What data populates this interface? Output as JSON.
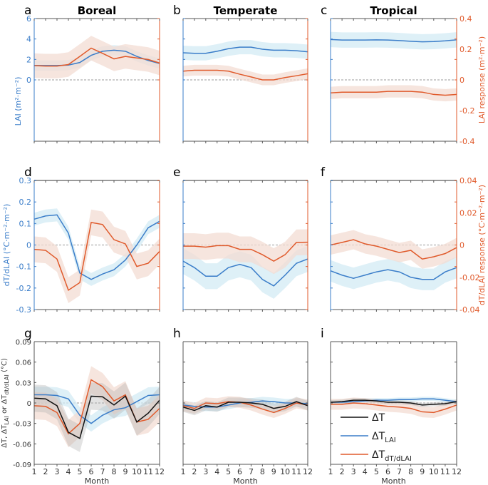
{
  "colors": {
    "lai": "#3a7dc9",
    "response": "#e05a2b",
    "dT": "#111111",
    "band_lai": "#d3ebf4",
    "band_resp": "#f3dcd3",
    "band_dT": "#b0b0b0"
  },
  "columns": [
    "Boreal",
    "Temperate",
    "Tropical"
  ],
  "panel_letters": [
    "a",
    "b",
    "c",
    "d",
    "e",
    "f",
    "g",
    "h",
    "i"
  ],
  "xlabel": "Month",
  "chart_data": [
    {
      "type": "line",
      "row": 1,
      "ylabel_left": "LAI (m²·m⁻²)",
      "ylabel_right": "LAI response (m²·m⁻²)",
      "ylim_left": [
        -6,
        6
      ],
      "yticks_left": [
        0,
        2,
        4,
        6
      ],
      "ylim_right": [
        -0.4,
        0.4
      ],
      "yticks_right": [
        -0.4,
        -0.2,
        0,
        0.2,
        0.4
      ],
      "x": [
        1,
        2,
        3,
        4,
        5,
        6,
        7,
        8,
        9,
        10,
        11,
        12
      ],
      "panels": [
        {
          "region": "Boreal",
          "series": [
            {
              "key": "lai",
              "axis": "left",
              "values": [
                1.4,
                1.4,
                1.4,
                1.45,
                1.7,
                2.4,
                2.8,
                2.9,
                2.8,
                2.3,
                1.9,
                1.6
              ],
              "band": 0.5
            },
            {
              "key": "response",
              "axis": "right",
              "values": [
                0.093,
                0.09,
                0.09,
                0.1,
                0.153,
                0.207,
                0.173,
                0.137,
                0.153,
                0.143,
                0.133,
                0.11
              ],
              "band": 0.08
            }
          ]
        },
        {
          "region": "Temperate",
          "series": [
            {
              "key": "lai",
              "axis": "left",
              "values": [
                2.65,
                2.6,
                2.6,
                2.8,
                3.05,
                3.2,
                3.2,
                3.0,
                2.9,
                2.9,
                2.85,
                2.75
              ],
              "band": 0.7
            },
            {
              "key": "response",
              "axis": "right",
              "values": [
                0.057,
                0.063,
                0.063,
                0.063,
                0.057,
                0.037,
                0.019,
                0,
                0,
                0.015,
                0.027,
                0.04
              ],
              "band": 0.035
            }
          ]
        },
        {
          "region": "Tropical",
          "series": [
            {
              "key": "lai",
              "axis": "left",
              "values": [
                3.95,
                3.9,
                3.9,
                3.9,
                3.92,
                3.9,
                3.85,
                3.78,
                3.72,
                3.75,
                3.82,
                3.92
              ],
              "band": 0.75
            },
            {
              "key": "response",
              "axis": "right",
              "values": [
                -0.085,
                -0.08,
                -0.08,
                -0.08,
                -0.08,
                -0.075,
                -0.075,
                -0.075,
                -0.08,
                -0.095,
                -0.1,
                -0.095
              ],
              "band": 0.04
            }
          ]
        }
      ]
    },
    {
      "type": "line",
      "row": 2,
      "ylabel_left": "dT/dLAI (°C·m⁻²·m⁻²)",
      "ylabel_right": "dT/dLAI response (°C·m⁻²·m⁻²)",
      "ylim_left": [
        -0.3,
        0.3
      ],
      "yticks_left": [
        -0.3,
        -0.2,
        -0.1,
        0,
        0.1,
        0.2,
        0.3
      ],
      "ylim_right": [
        -0.04,
        0.04
      ],
      "yticks_right": [
        -0.04,
        -0.02,
        0,
        0.02,
        0.04
      ],
      "x": [
        1,
        2,
        3,
        4,
        5,
        6,
        7,
        8,
        9,
        10,
        11,
        12
      ],
      "panels": [
        {
          "region": "Boreal",
          "series": [
            {
              "key": "lai",
              "axis": "left",
              "values": [
                0.12,
                0.135,
                0.14,
                0.055,
                -0.13,
                -0.16,
                -0.135,
                -0.115,
                -0.07,
                0,
                0.08,
                0.11
              ],
              "band": 0.03
            },
            {
              "key": "response",
              "axis": "right",
              "values": [
                -0.0027,
                -0.0033,
                -0.0087,
                -0.028,
                -0.0233,
                0.014,
                0.0127,
                0.0033,
                0.0007,
                -0.0133,
                -0.0113,
                -0.004
              ],
              "band": 0.008
            }
          ]
        },
        {
          "region": "Temperate",
          "series": [
            {
              "key": "lai",
              "axis": "left",
              "values": [
                -0.075,
                -0.105,
                -0.145,
                -0.145,
                -0.105,
                -0.09,
                -0.105,
                -0.16,
                -0.19,
                -0.14,
                -0.085,
                -0.065
              ],
              "band": 0.06
            },
            {
              "key": "response",
              "axis": "right",
              "values": [
                -0.0007,
                -0.0007,
                -0.0013,
                -0.0004,
                -0.0004,
                -0.0027,
                -0.0027,
                -0.006,
                -0.01,
                -0.006,
                0.0016,
                0.0017
              ],
              "band": 0.008
            }
          ]
        },
        {
          "region": "Tropical",
          "series": [
            {
              "key": "lai",
              "axis": "left",
              "values": [
                -0.12,
                -0.14,
                -0.155,
                -0.14,
                -0.125,
                -0.115,
                -0.125,
                -0.15,
                -0.16,
                -0.16,
                -0.125,
                -0.105
              ],
              "band": 0.05
            },
            {
              "key": "response",
              "axis": "right",
              "values": [
                0,
                0.0016,
                0.0033,
                0.0007,
                -0.0007,
                -0.0027,
                -0.0047,
                -0.0033,
                -0.0087,
                -0.0073,
                -0.0053,
                -0.0016
              ],
              "band": 0.006
            }
          ]
        }
      ]
    },
    {
      "type": "line",
      "row": 3,
      "ylabel_left": "ΔT, ΔT",
      "ylabel_parts": [
        [
          "ΔT, ΔT",
          ""
        ],
        [
          "LAI",
          "sub"
        ],
        [
          " or ΔT",
          ""
        ],
        [
          "dt/dLAI",
          "sub"
        ],
        [
          " (°C)",
          ""
        ]
      ],
      "ylim_left": [
        -0.09,
        0.09
      ],
      "yticks_left": [
        -0.09,
        -0.06,
        -0.03,
        0,
        0.03,
        0.06,
        0.09
      ],
      "x": [
        1,
        2,
        3,
        4,
        5,
        6,
        7,
        8,
        9,
        10,
        11,
        12
      ],
      "legend": {
        "placement": "lower-right (panel i)",
        "entries": [
          {
            "key": "dT",
            "base": "ΔT",
            "sub": ""
          },
          {
            "key": "lai",
            "base": "ΔT",
            "sub": "LAI"
          },
          {
            "key": "response",
            "base": "ΔT",
            "sub": "dT/dLAI"
          }
        ]
      },
      "panels": [
        {
          "region": "Boreal",
          "series": [
            {
              "key": "lai",
              "axis": "left",
              "values": [
                0.012,
                0.012,
                0.011,
                0.006,
                -0.018,
                -0.03,
                -0.018,
                -0.01,
                -0.007,
                0.002,
                0.011,
                0.012
              ],
              "band": 0.012
            },
            {
              "key": "response",
              "axis": "left",
              "values": [
                -0.004,
                -0.005,
                -0.014,
                -0.045,
                -0.03,
                0.034,
                0.024,
                0.003,
                0.012,
                -0.028,
                -0.024,
                -0.008
              ],
              "band": 0.02
            },
            {
              "key": "dT",
              "axis": "left",
              "values": [
                0.007,
                0.006,
                -0.004,
                -0.043,
                -0.052,
                0.01,
                0.009,
                -0.003,
                0.01,
                -0.028,
                -0.015,
                0.004
              ],
              "band": 0.02
            }
          ]
        },
        {
          "region": "Temperate",
          "series": [
            {
              "key": "lai",
              "axis": "left",
              "values": [
                -0.003,
                -0.005,
                -0.006,
                -0.006,
                -0.003,
                0,
                0.001,
                0.003,
                0.002,
                0,
                0,
                -0.001
              ],
              "band": 0.006
            },
            {
              "key": "response",
              "axis": "left",
              "values": [
                -0.004,
                -0.008,
                0,
                -0.001,
                0.002,
                0.001,
                -0.003,
                -0.009,
                -0.014,
                -0.008,
                0,
                -0.003
              ],
              "band": 0.008
            },
            {
              "key": "dT",
              "axis": "left",
              "values": [
                -0.006,
                -0.011,
                -0.004,
                -0.006,
                0.001,
                0.001,
                0,
                -0.002,
                -0.008,
                -0.005,
                0.002,
                -0.004
              ],
              "band": 0.007
            }
          ]
        },
        {
          "region": "Tropical",
          "series": [
            {
              "key": "lai",
              "axis": "left",
              "values": [
                0.001,
                0.001,
                0.002,
                0.003,
                0.004,
                0.004,
                0.005,
                0.005,
                0.006,
                0.006,
                0.004,
                0.002
              ],
              "band": 0.003
            },
            {
              "key": "response",
              "axis": "left",
              "values": [
                -0.002,
                -0.002,
                0,
                -0.001,
                -0.003,
                -0.005,
                -0.006,
                -0.008,
                -0.013,
                -0.014,
                -0.009,
                -0.003
              ],
              "band": 0.008
            },
            {
              "key": "dT",
              "axis": "left",
              "values": [
                0.001,
                0.002,
                0.004,
                0.004,
                0.003,
                0.001,
                0.001,
                0,
                -0.003,
                -0.002,
                -0.001,
                0.002
              ],
              "band": 0.003
            }
          ]
        }
      ]
    }
  ]
}
